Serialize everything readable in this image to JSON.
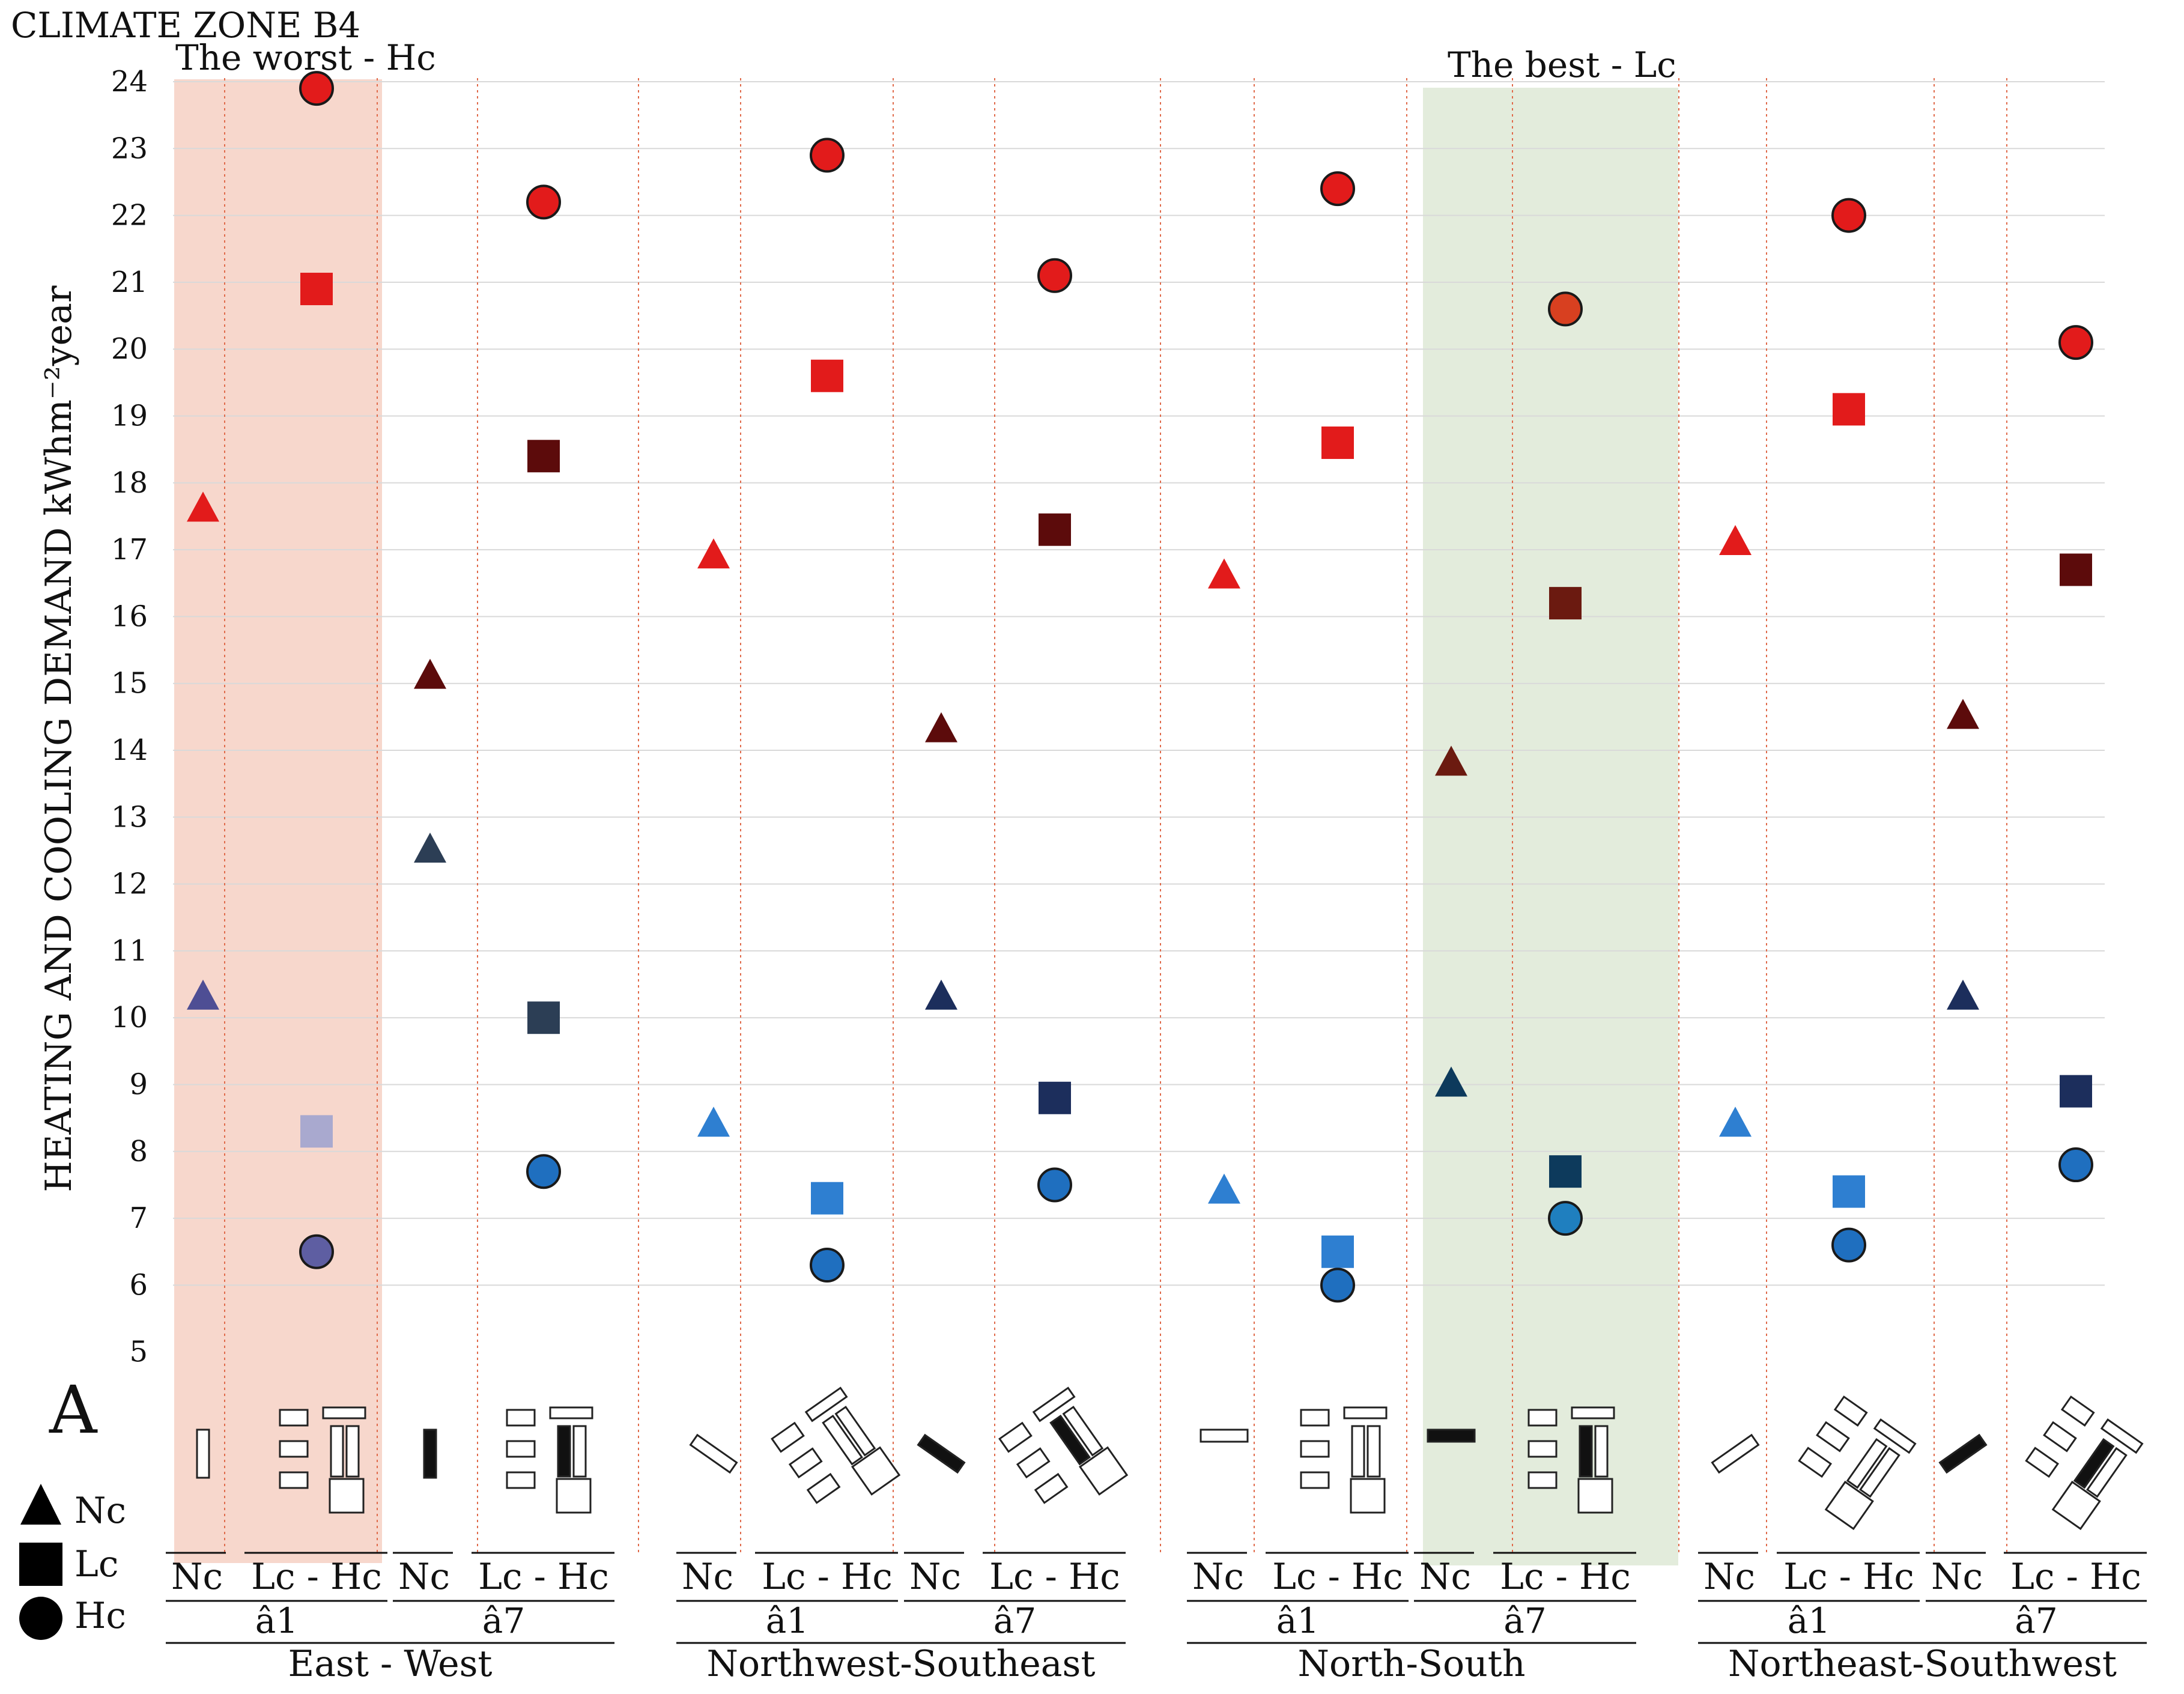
{
  "chart_data": {
    "type": "scatter",
    "title": "CLIMATE ZONE B4",
    "ylabel": "HEATING AND COOLING DEMAND kWhm⁻²year",
    "ylim": [
      5,
      24
    ],
    "yticks": [
      5,
      6,
      7,
      8,
      9,
      10,
      11,
      12,
      13,
      14,
      15,
      16,
      17,
      18,
      19,
      20,
      21,
      22,
      23,
      24
    ],
    "grid": true,
    "panel_letter": "A",
    "callouts": {
      "worst": "The worst - Hc",
      "best": "The best - Lc"
    },
    "legend": [
      {
        "shape": "triangle",
        "label": "Nc"
      },
      {
        "shape": "square",
        "label": "Lc"
      },
      {
        "shape": "circle",
        "label": "Hc"
      }
    ],
    "groups": [
      {
        "orientation": "East - West",
        "angles": [
          {
            "angle": "â1",
            "columns": [
              {
                "label": "Nc",
                "shape": "triangle",
                "points": [
                  {
                    "value": 17.6,
                    "color": "#e21b1b"
                  },
                  {
                    "value": 10.3,
                    "color": "#4e4e94"
                  }
                ]
              },
              {
                "label": "Lc - Hc",
                "points": [
                  {
                    "shape": "circle",
                    "value": 23.9,
                    "color": "#e21b1b"
                  },
                  {
                    "shape": "square",
                    "value": 20.9,
                    "color": "#e21b1b"
                  },
                  {
                    "shape": "square",
                    "value": 8.3,
                    "color": "#a9a9cf"
                  },
                  {
                    "shape": "circle",
                    "value": 6.5,
                    "color": "#5e5ea2"
                  }
                ]
              }
            ]
          },
          {
            "angle": "â7",
            "columns": [
              {
                "label": "Nc",
                "shape": "triangle",
                "points": [
                  {
                    "value": 15.1,
                    "color": "#5c0b0b"
                  },
                  {
                    "value": 12.5,
                    "color": "#2c3e55"
                  }
                ]
              },
              {
                "label": "Lc - Hc",
                "points": [
                  {
                    "shape": "circle",
                    "value": 22.2,
                    "color": "#e21b1b"
                  },
                  {
                    "shape": "square",
                    "value": 18.4,
                    "color": "#5c0b0b"
                  },
                  {
                    "shape": "square",
                    "value": 10.0,
                    "color": "#2c3e55"
                  },
                  {
                    "shape": "circle",
                    "value": 7.7,
                    "color": "#1f6fbf"
                  }
                ]
              }
            ]
          }
        ]
      },
      {
        "orientation": "Northwest-Southeast",
        "angles": [
          {
            "angle": "â1",
            "columns": [
              {
                "label": "Nc",
                "shape": "triangle",
                "points": [
                  {
                    "value": 16.9,
                    "color": "#e21b1b"
                  },
                  {
                    "value": 8.4,
                    "color": "#2e7fd1"
                  }
                ]
              },
              {
                "label": "Lc - Hc",
                "points": [
                  {
                    "shape": "circle",
                    "value": 22.9,
                    "color": "#e21b1b"
                  },
                  {
                    "shape": "square",
                    "value": 19.6,
                    "color": "#e21b1b"
                  },
                  {
                    "shape": "square",
                    "value": 7.3,
                    "color": "#2e7fd1"
                  },
                  {
                    "shape": "circle",
                    "value": 6.3,
                    "color": "#1f6fbf"
                  }
                ]
              }
            ]
          },
          {
            "angle": "â7",
            "columns": [
              {
                "label": "Nc",
                "shape": "triangle",
                "points": [
                  {
                    "value": 14.3,
                    "color": "#5c0b0b"
                  },
                  {
                    "value": 10.3,
                    "color": "#1c2e5c"
                  }
                ]
              },
              {
                "label": "Lc - Hc",
                "points": [
                  {
                    "shape": "circle",
                    "value": 21.1,
                    "color": "#e21b1b"
                  },
                  {
                    "shape": "square",
                    "value": 17.3,
                    "color": "#5c0b0b"
                  },
                  {
                    "shape": "square",
                    "value": 8.8,
                    "color": "#1c2e5c"
                  },
                  {
                    "shape": "circle",
                    "value": 7.5,
                    "color": "#1f6fbf"
                  }
                ]
              }
            ]
          }
        ]
      },
      {
        "orientation": "North-South",
        "angles": [
          {
            "angle": "â1",
            "columns": [
              {
                "label": "Nc",
                "shape": "triangle",
                "points": [
                  {
                    "value": 16.6,
                    "color": "#e21b1b"
                  },
                  {
                    "value": 7.4,
                    "color": "#2e7fd1"
                  }
                ]
              },
              {
                "label": "Lc - Hc",
                "points": [
                  {
                    "shape": "circle",
                    "value": 22.4,
                    "color": "#e21b1b"
                  },
                  {
                    "shape": "square",
                    "value": 18.6,
                    "color": "#e21b1b"
                  },
                  {
                    "shape": "square",
                    "value": 6.5,
                    "color": "#2e7fd1"
                  },
                  {
                    "shape": "circle",
                    "value": 6.0,
                    "color": "#1f6fbf"
                  }
                ]
              }
            ]
          },
          {
            "angle": "â7",
            "columns": [
              {
                "label": "Nc",
                "shape": "triangle",
                "points": [
                  {
                    "value": 13.8,
                    "color": "#6b1a10"
                  },
                  {
                    "value": 9.0,
                    "color": "#0d3a5c"
                  }
                ]
              },
              {
                "label": "Lc - Hc",
                "points": [
                  {
                    "shape": "circle",
                    "value": 20.6,
                    "color": "#d84020"
                  },
                  {
                    "shape": "square",
                    "value": 16.2,
                    "color": "#6b1a10"
                  },
                  {
                    "shape": "square",
                    "value": 7.7,
                    "color": "#0d3a5c"
                  },
                  {
                    "shape": "circle",
                    "value": 7.0,
                    "color": "#1f7fbf"
                  }
                ]
              }
            ]
          }
        ]
      },
      {
        "orientation": "Northeast-Southwest",
        "angles": [
          {
            "angle": "â1",
            "columns": [
              {
                "label": "Nc",
                "shape": "triangle",
                "points": [
                  {
                    "value": 17.1,
                    "color": "#e21b1b"
                  },
                  {
                    "value": 8.4,
                    "color": "#2e7fd1"
                  }
                ]
              },
              {
                "label": "Lc - Hc",
                "points": [
                  {
                    "shape": "circle",
                    "value": 22.0,
                    "color": "#e21b1b"
                  },
                  {
                    "shape": "square",
                    "value": 19.1,
                    "color": "#e21b1b"
                  },
                  {
                    "shape": "square",
                    "value": 7.4,
                    "color": "#2e7fd1"
                  },
                  {
                    "shape": "circle",
                    "value": 6.6,
                    "color": "#1f6fbf"
                  }
                ]
              }
            ]
          },
          {
            "angle": "â7",
            "columns": [
              {
                "label": "Nc",
                "shape": "triangle",
                "points": [
                  {
                    "value": 14.5,
                    "color": "#5c0b0b"
                  },
                  {
                    "value": 10.3,
                    "color": "#1c2e5c"
                  }
                ]
              },
              {
                "label": "Lc - Hc",
                "points": [
                  {
                    "shape": "circle",
                    "value": 20.1,
                    "color": "#e21b1b"
                  },
                  {
                    "shape": "square",
                    "value": 16.7,
                    "color": "#5c0b0b"
                  },
                  {
                    "shape": "square",
                    "value": 8.9,
                    "color": "#1c2e5c"
                  },
                  {
                    "shape": "circle",
                    "value": 7.8,
                    "color": "#1f6fbf"
                  }
                ]
              }
            ]
          }
        ]
      }
    ]
  },
  "highlights": {
    "worst_color": "#f7d7cc",
    "best_color": "#e3ecdc"
  }
}
